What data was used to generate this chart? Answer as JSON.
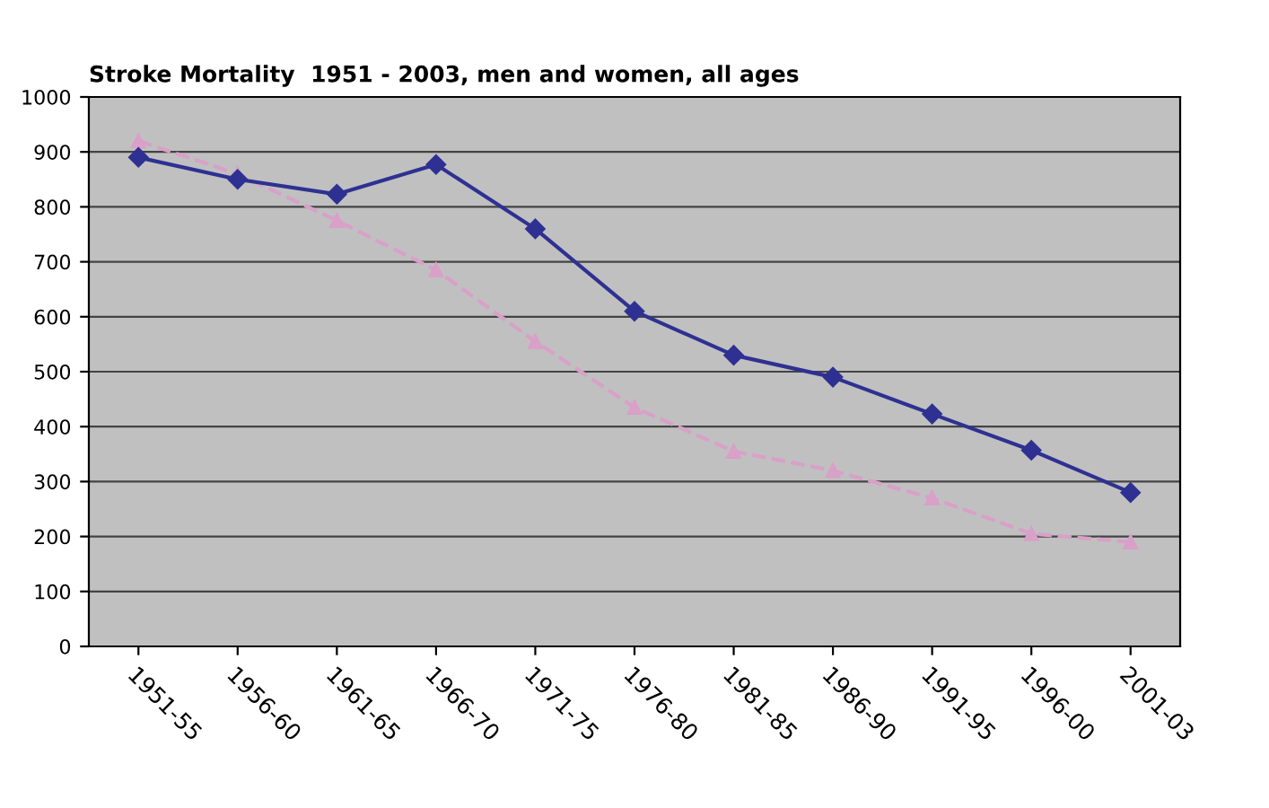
{
  "chart_data": {
    "type": "line",
    "title": "Stroke Mortality  1951 - 2003, men and women, all ages",
    "categories": [
      "1951-55",
      "1956-60",
      "1961-65",
      "1966-70",
      "1971-75",
      "1976-80",
      "1981-85",
      "1986-90",
      "1991-95",
      "1996-00",
      "2001-03"
    ],
    "series": [
      {
        "color": "#2e3192",
        "marker": "diamond",
        "values": [
          890,
          850,
          823,
          877,
          760,
          610,
          530,
          490,
          423,
          357,
          280
        ]
      },
      {
        "color": "#d9a0c8",
        "marker": "triangle",
        "line_style": "dashed",
        "values": [
          920,
          860,
          775,
          685,
          555,
          435,
          355,
          320,
          270,
          205,
          190
        ]
      }
    ],
    "ylim": [
      0,
      1000
    ],
    "yticks": [
      0,
      100,
      200,
      300,
      400,
      500,
      600,
      700,
      800,
      900,
      1000
    ],
    "grid": "y",
    "legend": false
  }
}
